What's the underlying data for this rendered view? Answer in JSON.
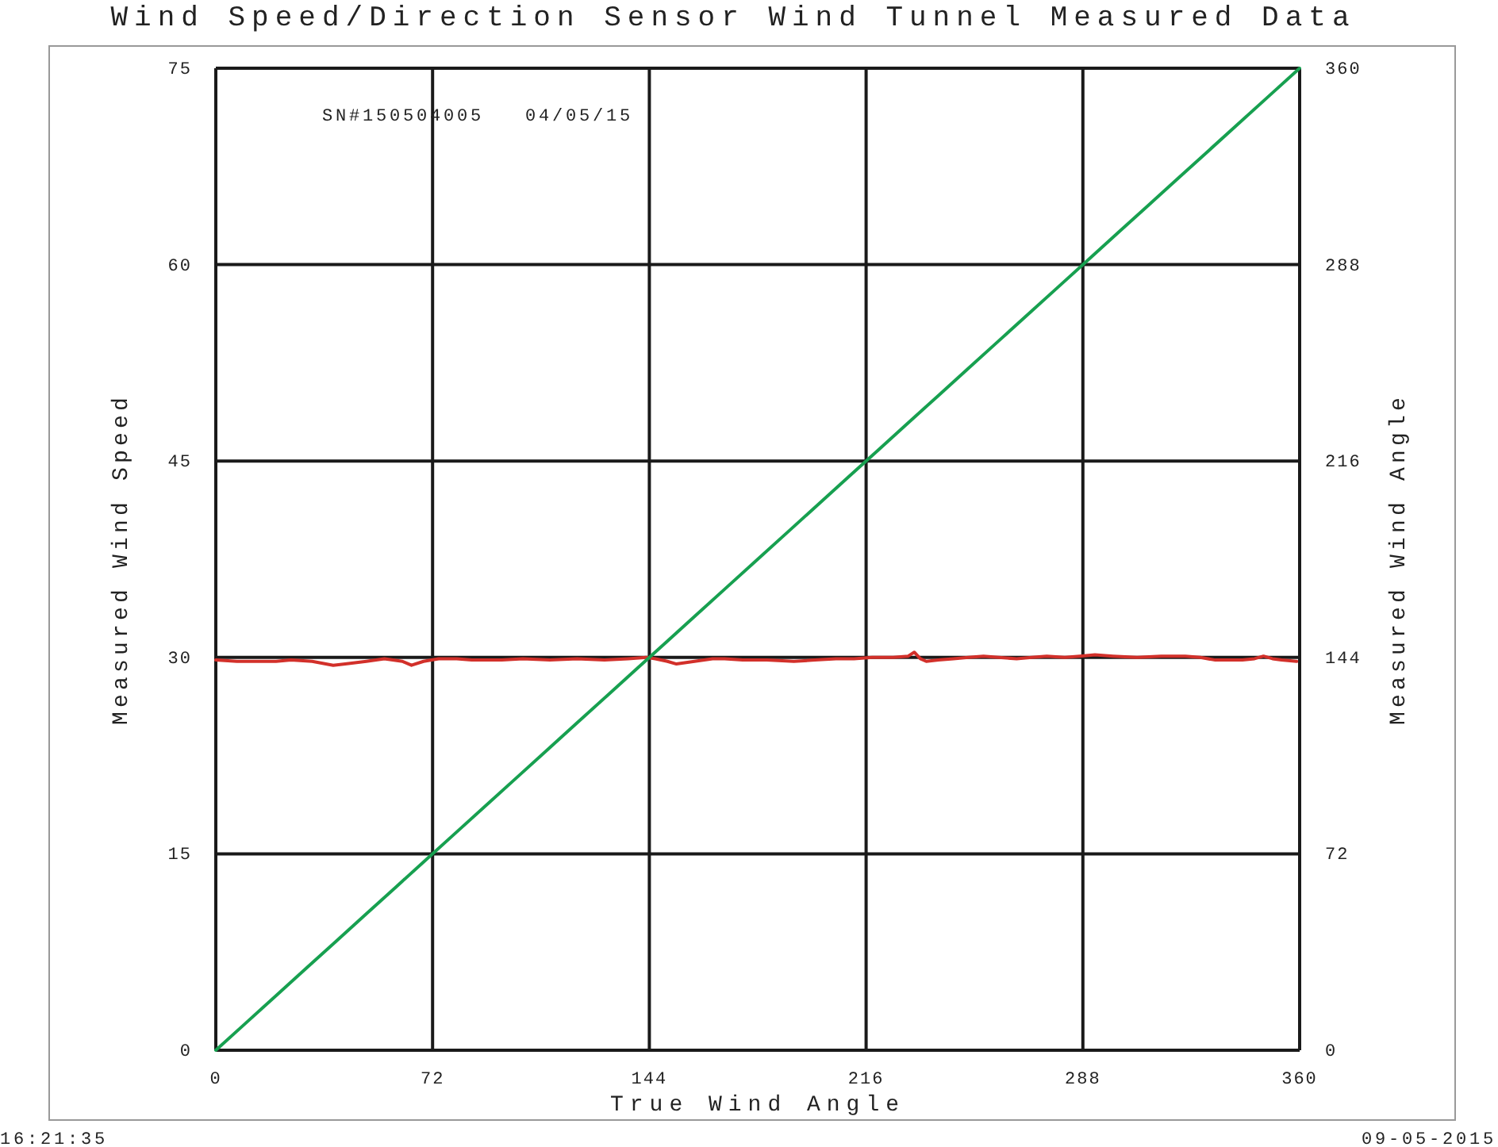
{
  "chart_data": {
    "type": "line",
    "title": "Wind Speed/Direction Sensor Wind Tunnel Measured Data",
    "xlabel": "True Wind Angle",
    "ylabel": "Measured Wind Speed",
    "y2label": "Measured Wind Angle",
    "annotations": [
      "SN#150504005",
      "04/05/15",
      "16:21:35",
      "09-05-2015"
    ],
    "xlim": [
      0,
      360
    ],
    "xticks": [
      0,
      72,
      144,
      216,
      288,
      360
    ],
    "ylim": [
      0,
      75
    ],
    "yticks": [
      0,
      15,
      30,
      45,
      60,
      75
    ],
    "y2lim": [
      0,
      360
    ],
    "y2ticks": [
      0,
      72,
      144,
      216,
      288,
      360
    ],
    "grid": true,
    "series": [
      {
        "color": "#d2302a",
        "axis": "y",
        "x": [
          0,
          7,
          14,
          20,
          25,
          32,
          39,
          43,
          50,
          56,
          62,
          65,
          69,
          74,
          80,
          85,
          95,
          102,
          111,
          120,
          129,
          137,
          143,
          146,
          150,
          153,
          159,
          165,
          169,
          175,
          183,
          192,
          199,
          206,
          212,
          218,
          225,
          230,
          232,
          234,
          236,
          240,
          245,
          250,
          255,
          260,
          266,
          271,
          276,
          282,
          287,
          292,
          298,
          306,
          314,
          322,
          327,
          332,
          341,
          345,
          348,
          351,
          354,
          359
        ],
        "values": [
          29.8,
          29.7,
          29.7,
          29.7,
          29.8,
          29.7,
          29.4,
          29.5,
          29.7,
          29.9,
          29.7,
          29.4,
          29.7,
          29.9,
          29.9,
          29.8,
          29.8,
          29.9,
          29.8,
          29.9,
          29.8,
          29.9,
          30.0,
          29.9,
          29.7,
          29.5,
          29.7,
          29.9,
          29.9,
          29.8,
          29.8,
          29.7,
          29.8,
          29.9,
          29.9,
          30.0,
          30.0,
          30.1,
          30.4,
          29.9,
          29.7,
          29.8,
          29.9,
          30.0,
          30.1,
          30.0,
          29.9,
          30.0,
          30.1,
          30.0,
          30.1,
          30.2,
          30.1,
          30.0,
          30.1,
          30.1,
          30.0,
          29.8,
          29.8,
          29.9,
          30.1,
          29.9,
          29.8,
          29.7
        ]
      },
      {
        "color": "#17a050",
        "axis": "y2",
        "x": [
          0,
          10,
          20,
          30,
          40,
          50,
          60,
          70,
          80,
          90,
          100,
          110,
          120,
          130,
          140,
          150,
          160,
          170,
          180,
          190,
          200,
          210,
          220,
          230,
          240,
          250,
          260,
          270,
          280,
          290,
          300,
          310,
          320,
          330,
          340,
          350,
          360
        ],
        "values": [
          0,
          10,
          20,
          30,
          40,
          50,
          60,
          70,
          80,
          90,
          100,
          110,
          120,
          130,
          140,
          150,
          160,
          170,
          180,
          190,
          200,
          210,
          220,
          230,
          240,
          250,
          260,
          270,
          280,
          290,
          300,
          310,
          320,
          330,
          340,
          350,
          360
        ]
      }
    ]
  }
}
